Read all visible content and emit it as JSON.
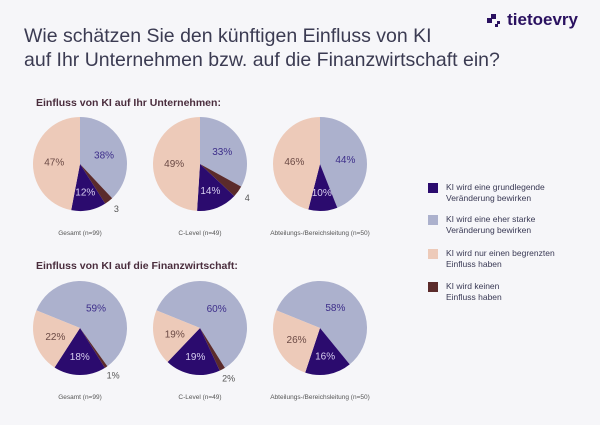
{
  "header": {
    "title_line1": "Wie schätzen Sie den künftigen Einfluss von KI",
    "title_line2": "auf Ihr Unternehmen bzw. auf die Finanzwirtschaft ein?",
    "logo_text": "tietoevry"
  },
  "colors": {
    "grundlegend": "#2b0b6e",
    "stark": "#acb1cd",
    "begrenzt": "#edcab9",
    "keine": "#5b2b2b"
  },
  "legend": [
    {
      "key": "grundlegend",
      "label_line1": "KI wird eine grundlegende",
      "label_line2": "Veränderung bewirken"
    },
    {
      "key": "stark",
      "label_line1": "KI wird eine eher starke",
      "label_line2": "Veränderung bewirken"
    },
    {
      "key": "begrenzt",
      "label_line1": "KI wird nur einen begrenzten",
      "label_line2": "Einfluss haben"
    },
    {
      "key": "keine",
      "label_line1": "KI wird keinen",
      "label_line2": "Einfluss haben"
    }
  ],
  "sections": [
    {
      "title": "Einfluss von KI auf Ihr Unternehmen:"
    },
    {
      "title": "Einfluss von KI auf die Finanzwirtschaft:"
    }
  ],
  "chart_data": [
    {
      "type": "pie",
      "section": 0,
      "title": "Gesamt (n=99)",
      "slices": [
        {
          "key": "stark",
          "value": 38,
          "label": "38%"
        },
        {
          "key": "keine",
          "value": 3,
          "label": "3"
        },
        {
          "key": "grundlegend",
          "value": 12,
          "label": "12%"
        },
        {
          "key": "begrenzt",
          "value": 47,
          "label": "47%"
        }
      ]
    },
    {
      "type": "pie",
      "section": 0,
      "title": "C-Level (n=49)",
      "slices": [
        {
          "key": "stark",
          "value": 33,
          "label": "33%"
        },
        {
          "key": "keine",
          "value": 4,
          "label": "4"
        },
        {
          "key": "grundlegend",
          "value": 14,
          "label": "14%"
        },
        {
          "key": "begrenzt",
          "value": 49,
          "label": "49%"
        }
      ]
    },
    {
      "type": "pie",
      "section": 0,
      "title": "Abteilungs-/Bereichsleitung (n=50)",
      "slices": [
        {
          "key": "stark",
          "value": 44,
          "label": "44%"
        },
        {
          "key": "keine",
          "value": 0,
          "label": ""
        },
        {
          "key": "grundlegend",
          "value": 10,
          "label": "10%"
        },
        {
          "key": "begrenzt",
          "value": 46,
          "label": "46%"
        }
      ]
    },
    {
      "type": "pie",
      "section": 1,
      "title": "Gesamt (n=99)",
      "slices": [
        {
          "key": "stark",
          "value": 59,
          "label": "59%"
        },
        {
          "key": "keine",
          "value": 1,
          "label": "1%"
        },
        {
          "key": "grundlegend",
          "value": 18,
          "label": "18%"
        },
        {
          "key": "begrenzt",
          "value": 22,
          "label": "22%"
        }
      ]
    },
    {
      "type": "pie",
      "section": 1,
      "title": "C-Level (n=49)",
      "slices": [
        {
          "key": "stark",
          "value": 60,
          "label": "60%"
        },
        {
          "key": "keine",
          "value": 2,
          "label": "2%"
        },
        {
          "key": "grundlegend",
          "value": 19,
          "label": "19%"
        },
        {
          "key": "begrenzt",
          "value": 19,
          "label": "19%"
        }
      ]
    },
    {
      "type": "pie",
      "section": 1,
      "title": "Abteilungs-/Bereichsleitung (n=50)",
      "slices": [
        {
          "key": "stark",
          "value": 58,
          "label": "58%"
        },
        {
          "key": "keine",
          "value": 0,
          "label": ""
        },
        {
          "key": "grundlegend",
          "value": 16,
          "label": "16%"
        },
        {
          "key": "begrenzt",
          "value": 26,
          "label": "26%"
        }
      ]
    }
  ]
}
